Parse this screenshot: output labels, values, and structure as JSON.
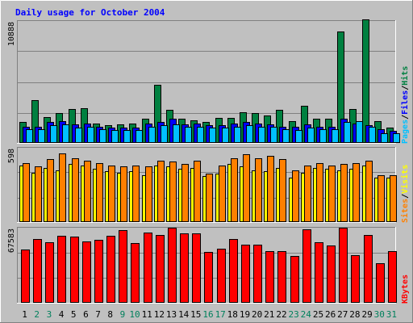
{
  "chart_data": {
    "type": "bar",
    "title": "Daily usage for October 2004",
    "colors": {
      "hits": "#008040",
      "files": "#0000ff",
      "pages": "#00c0ff",
      "visits": "#ffff00",
      "sites": "#ff8000",
      "kbytes": "#ff0000",
      "background": "#c0c0c0",
      "frame": "#ffffff",
      "title": "#0000ff",
      "weekday_label": "#000000",
      "weekend_label": "#00805c"
    },
    "days": [
      "1",
      "2",
      "3",
      "4",
      "5",
      "6",
      "7",
      "8",
      "9",
      "10",
      "11",
      "12",
      "13",
      "14",
      "15",
      "16",
      "17",
      "18",
      "19",
      "20",
      "21",
      "22",
      "23",
      "24",
      "25",
      "26",
      "27",
      "28",
      "29",
      "30",
      "31"
    ],
    "weekend": [
      false,
      true,
      true,
      false,
      false,
      false,
      false,
      false,
      true,
      true,
      false,
      false,
      false,
      false,
      false,
      true,
      true,
      false,
      false,
      false,
      false,
      false,
      true,
      true,
      false,
      false,
      false,
      false,
      false,
      true,
      true
    ],
    "panels": [
      {
        "id": "hits_files_pages",
        "max_label": "10888",
        "ymax": 10888,
        "legend": [
          {
            "text": "Pages",
            "color": "#00c0ff"
          },
          {
            "text": "/",
            "color": "#000000"
          },
          {
            "text": "Files",
            "color": "#0000ff"
          },
          {
            "text": "/",
            "color": "#000000"
          },
          {
            "text": "Hits",
            "color": "#008040"
          }
        ],
        "series": [
          {
            "name": "Hits",
            "color": "#008040",
            "values": [
              1800,
              3800,
              2300,
              2600,
              3000,
              3100,
              1700,
              1500,
              1600,
              1700,
              2100,
              5200,
              2900,
              2100,
              2000,
              1800,
              2200,
              2200,
              2700,
              2600,
              2400,
              2900,
              1900,
              3300,
              2100,
              2100,
              10000,
              3000,
              11100,
              1900,
              1300
            ]
          },
          {
            "name": "Files",
            "color": "#0000ff",
            "values": [
              1400,
              1400,
              1800,
              1900,
              1600,
              1700,
              1400,
              1300,
              1300,
              1300,
              1700,
              1800,
              2100,
              1600,
              1700,
              1500,
              1500,
              1700,
              1800,
              1700,
              1600,
              1400,
              1400,
              1600,
              1400,
              1400,
              2100,
              1700,
              1500,
              1200,
              1000
            ]
          },
          {
            "name": "Pages",
            "color": "#00c0ff",
            "values": [
              1200,
              1200,
              1500,
              1600,
              1300,
              1400,
              1200,
              1100,
              1100,
              1100,
              1400,
              1500,
              1600,
              1400,
              1400,
              1300,
              1300,
              1400,
              1500,
              1400,
              1400,
              1200,
              1100,
              1300,
              1200,
              1200,
              1800,
              1900,
              1400,
              800,
              800
            ]
          }
        ]
      },
      {
        "id": "visits_sites",
        "max_label": "598",
        "ymax": 598,
        "legend": [
          {
            "text": "Sites",
            "color": "#ff8000"
          },
          {
            "text": "/",
            "color": "#000000"
          },
          {
            "text": "Visits",
            "color": "#ffff00"
          }
        ],
        "series": [
          {
            "name": "Visits",
            "color": "#ffff00",
            "values": [
              460,
              400,
              440,
              420,
              470,
              460,
              430,
              410,
              400,
              410,
              380,
              460,
              450,
              430,
              440,
              370,
              390,
              470,
              450,
              420,
              410,
              440,
              360,
              400,
              440,
              430,
              420,
              430,
              460,
              360,
              360
            ]
          },
          {
            "name": "Sites",
            "color": "#ff8000",
            "values": [
              480,
              450,
              510,
              560,
              520,
              500,
              480,
              460,
              450,
              460,
              450,
              500,
              490,
              470,
              500,
              390,
              460,
              520,
              550,
              520,
              540,
              510,
              420,
              460,
              480,
              460,
              470,
              480,
              500,
              380,
              380
            ]
          }
        ]
      },
      {
        "id": "kbytes",
        "max_label": "67583",
        "ymax": 67583,
        "legend": [
          {
            "text": "KBytes",
            "color": "#ff0000"
          }
        ],
        "series": [
          {
            "name": "KBytes",
            "color": "#ff0000",
            "values": [
              48000,
              58000,
              55000,
              61000,
              60000,
              56000,
              57000,
              61000,
              66000,
              54000,
              64000,
              62000,
              68000,
              63000,
              63000,
              46000,
              49000,
              58000,
              53000,
              53000,
              47000,
              47000,
              42000,
              67000,
              55000,
              52000,
              68000,
              43000,
              62000,
              36000,
              47000
            ]
          }
        ]
      }
    ]
  }
}
